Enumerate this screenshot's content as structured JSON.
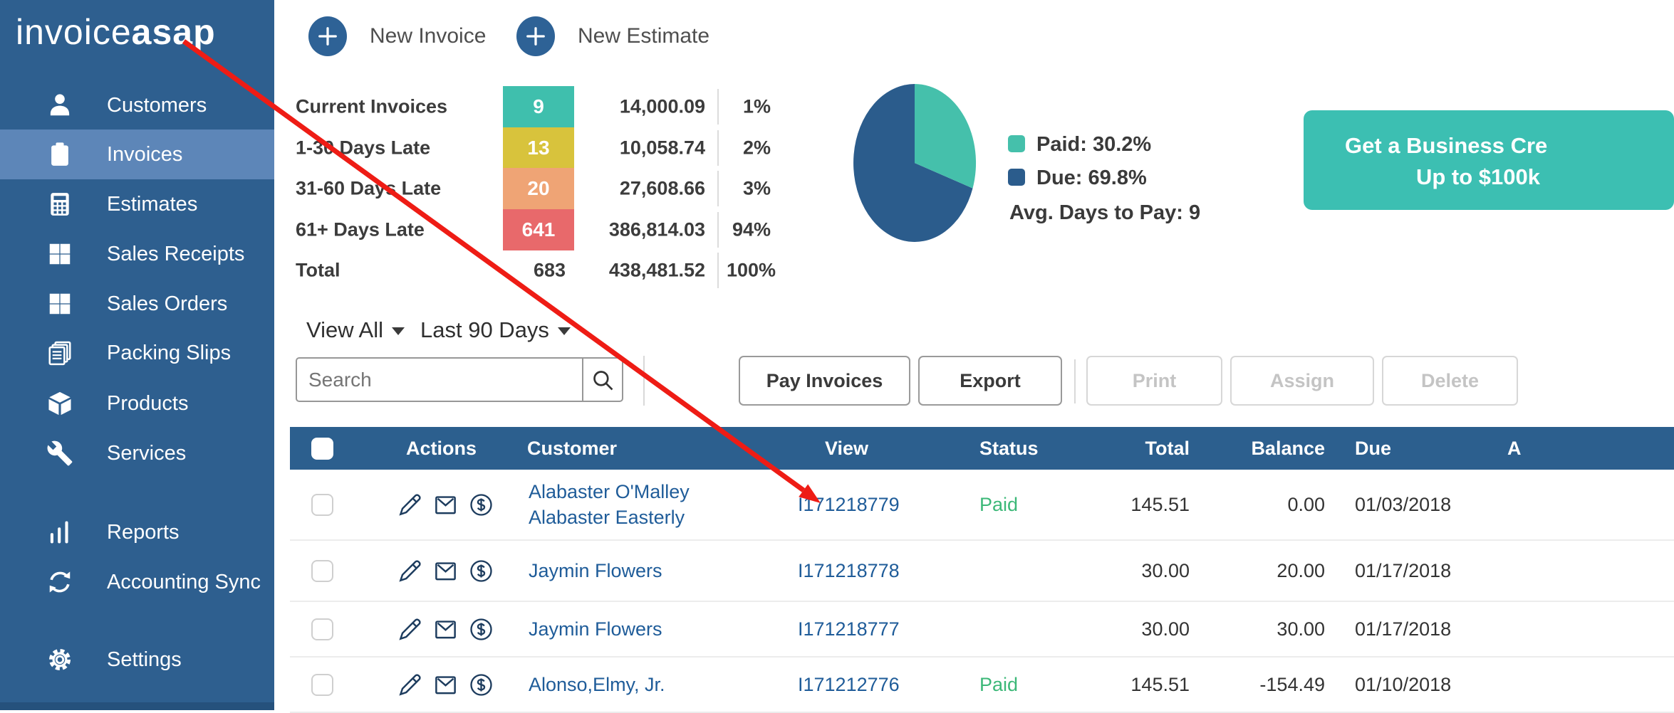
{
  "sidebar": {
    "logo": {
      "light": "invoice",
      "bold": "asap"
    },
    "items": [
      {
        "label": "Customers",
        "icon": "person-icon",
        "active": false
      },
      {
        "label": "Invoices",
        "icon": "clipboard-icon",
        "active": true
      },
      {
        "label": "Estimates",
        "icon": "calculator-icon",
        "active": false
      },
      {
        "label": "Sales Receipts",
        "icon": "grid-icon",
        "active": false
      },
      {
        "label": "Sales Orders",
        "icon": "grid-icon",
        "active": false
      },
      {
        "label": "Packing Slips",
        "icon": "layers-icon",
        "active": false
      },
      {
        "label": "Products",
        "icon": "cube-icon",
        "active": false
      },
      {
        "label": "Services",
        "icon": "wrench-icon",
        "active": false
      },
      {
        "label": "Reports",
        "icon": "bar-chart-icon",
        "active": false
      },
      {
        "label": "Accounting Sync",
        "icon": "sync-icon",
        "active": false
      },
      {
        "label": "Settings",
        "icon": "gear-icon",
        "active": false
      }
    ]
  },
  "header": {
    "new_invoice_label": "New Invoice",
    "new_estimate_label": "New Estimate"
  },
  "aging": {
    "rows": [
      {
        "label": "Current Invoices",
        "count": "9",
        "amount": "14,000.09",
        "pct": "1%",
        "color": "#3fbfad"
      },
      {
        "label": "1-30 Days Late",
        "count": "13",
        "amount": "10,058.74",
        "pct": "2%",
        "color": "#d8c33c"
      },
      {
        "label": "31-60 Days Late",
        "count": "20",
        "amount": "27,608.66",
        "pct": "3%",
        "color": "#efa475"
      },
      {
        "label": "61+ Days Late",
        "count": "641",
        "amount": "386,814.03",
        "pct": "94%",
        "color": "#e8696b"
      }
    ],
    "total": {
      "label": "Total",
      "count": "683",
      "amount": "438,481.52",
      "pct": "100%"
    }
  },
  "pie": {
    "paid_label": "Paid: 30.2%",
    "due_label": "Due: 69.8%",
    "avg_days_label": "Avg. Days to Pay: 9",
    "paid_color": "#45c0ab",
    "due_color": "#2b5c8c"
  },
  "chart_data": {
    "type": "pie",
    "labels": [
      "Paid",
      "Due"
    ],
    "values": [
      30.2,
      69.8
    ],
    "colors": [
      "#45c0ab",
      "#2b5c8c"
    ],
    "annotation": "Avg. Days to Pay: 9",
    "legend_position": "right"
  },
  "promo": {
    "line1": "Get a Business Cre",
    "line2": "Up to $100k",
    "color": "#3cbfb2"
  },
  "filters": {
    "view_filter": "View All",
    "date_filter": "Last 90 Days"
  },
  "search": {
    "placeholder": "Search"
  },
  "toolbar": {
    "buttons": [
      {
        "label": "Pay Invoices",
        "enabled": true
      },
      {
        "label": "Export",
        "enabled": true
      },
      {
        "label": "Print",
        "enabled": false
      },
      {
        "label": "Assign",
        "enabled": false
      },
      {
        "label": "Delete",
        "enabled": false
      }
    ]
  },
  "table": {
    "columns": [
      "Actions",
      "Customer",
      "View",
      "Status",
      "Total",
      "Balance",
      "Due",
      "A"
    ],
    "rows": [
      {
        "customer": "Alabaster O'Malley\nAlabaster Easterly",
        "view": "I171218779",
        "status": "Paid",
        "total": "145.51",
        "balance": "0.00",
        "due": "01/03/2018"
      },
      {
        "customer": "Jaymin Flowers",
        "view": "I171218778",
        "status": "",
        "total": "30.00",
        "balance": "20.00",
        "due": "01/17/2018"
      },
      {
        "customer": "Jaymin Flowers",
        "view": "I171218777",
        "status": "",
        "total": "30.00",
        "balance": "30.00",
        "due": "01/17/2018"
      },
      {
        "customer": "Alonso,Elmy, Jr.",
        "view": "I171212776",
        "status": "Paid",
        "total": "145.51",
        "balance": "-154.49",
        "due": "01/10/2018"
      }
    ]
  },
  "colors": {
    "sidebar": "#2e5f8f",
    "sidebar_active": "#5d86b8",
    "table_header": "#2c5f8e",
    "link": "#1f5c99",
    "paid_green": "#3cb878",
    "annotation_arrow": "#ee1c15"
  }
}
